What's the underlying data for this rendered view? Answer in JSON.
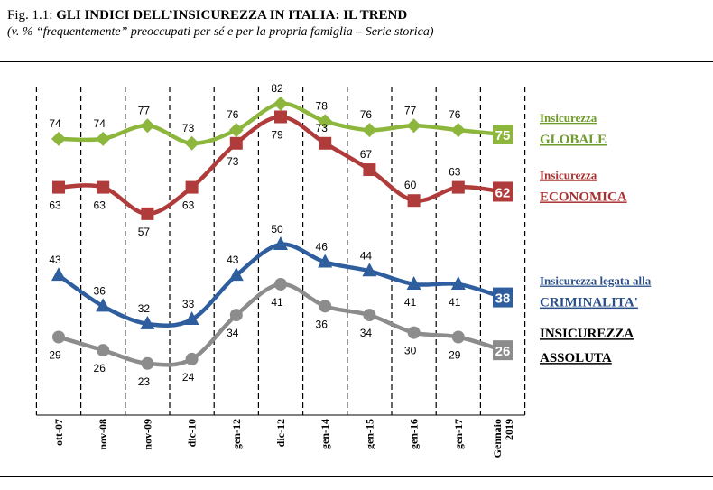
{
  "figure": {
    "number_label": "Fig. 1.1:",
    "title": "GLI INDICI DELL’INSICUREZZA IN ITALIA: IL TREND",
    "subtitle": "(v. % “frequentemente” preoccupati per sé e per la propria famiglia – Serie storica)"
  },
  "chart_data": {
    "type": "line",
    "categories": [
      "ott-07",
      "nov-08",
      "nov-09",
      "dic-10",
      "gen-12",
      "dic-12",
      "gen-14",
      "gen-15",
      "gen-16",
      "gen-17",
      "Gennaio 2019"
    ],
    "series": [
      {
        "name": "Insicurezza GLOBALE",
        "legend_lines": [
          "Insicurezza",
          "GLOBALE"
        ],
        "values": [
          74,
          74,
          77,
          73,
          76,
          82,
          78,
          76,
          77,
          76,
          75
        ],
        "color": "#8DB63C",
        "marker": "diamond"
      },
      {
        "name": "Insicurezza ECONOMICA",
        "legend_lines": [
          "Insicurezza",
          "ECONOMICA"
        ],
        "values": [
          63,
          63,
          57,
          63,
          73,
          79,
          73,
          67,
          60,
          63,
          62
        ],
        "color": "#B03B3B",
        "marker": "square"
      },
      {
        "name": "Insicurezza legata alla CRIMINALITA'",
        "legend_lines": [
          "Insicurezza  legata alla",
          "CRIMINALITA'"
        ],
        "values": [
          43,
          36,
          32,
          33,
          43,
          50,
          46,
          44,
          41,
          41,
          38
        ],
        "color": "#2E5E9E",
        "marker": "triangle"
      },
      {
        "name": "INSICUREZZA ASSOLUTA",
        "legend_lines": [
          "INSICUREZZA",
          "ASSOLUTA"
        ],
        "values": [
          29,
          26,
          23,
          24,
          34,
          41,
          36,
          34,
          30,
          29,
          26
        ],
        "color": "#8C8C8C",
        "marker": "circle"
      }
    ],
    "legend_text_colors": [
      "#6E9A2A",
      "#A83232",
      "#2A4F86",
      "#000000"
    ],
    "legend_placement": "right",
    "grid": "vertical dashed lines"
  }
}
